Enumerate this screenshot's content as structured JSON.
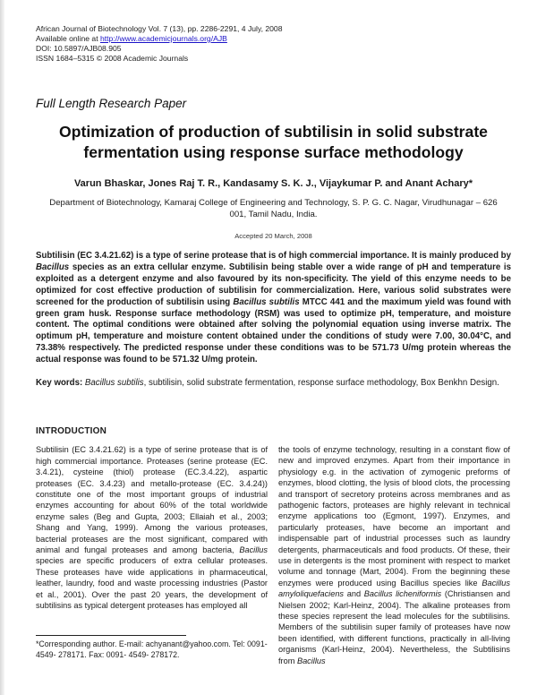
{
  "header": {
    "journal_line": "African Journal of Biotechnology Vol. 7 (13), pp. 2286-2291, 4 July, 2008",
    "available_prefix": "Available online at ",
    "journal_url": "http://www.academicjournals.org/AJB",
    "doi_line": "DOI: 10.5897/AJB08.905",
    "issn_line": "ISSN 1684–5315 © 2008 Academic Journals"
  },
  "article": {
    "section_label": "Full Length Research Paper",
    "title": "Optimization of production of subtilisin in solid substrate fermentation using response surface methodology",
    "authors": "Varun Bhaskar, Jones Raj T. R., Kandasamy S. K. J., Vijaykumar P. and Anant Achary*",
    "affiliation": "Department of Biotechnology, Kamaraj College of Engineering and Technology, S. P. G. C. Nagar, Virudhunagar – 626 001, Tamil Nadu, India.",
    "accepted": "Accepted 20 March, 2008",
    "abstract_html": "Subtilisin (EC 3.4.21.62) is a type of serine protease that is of high commercial importance. It is mainly produced by <i>Bacillus</i> species as an extra cellular enzyme. Subtilisin being stable over a wide range of pH and temperature is exploited as a detergent enzyme and also favoured by its non-specificity. The yield of this enzyme needs to be optimized for cost effective production of subtilisin for commercialization. Here, various solid substrates were screened for the production of subtilisin using <i>Bacillus subtilis</i> MTCC 441 and the maximum yield was found with green gram husk. Response surface methodology (RSM) was used to optimize pH, temperature, and moisture content. The optimal conditions were obtained after solving the polynomial equation using inverse matrix. The optimum pH, temperature and moisture content obtained under the conditions of study were 7.00, 30.04°C, and 73.38% respectively. The predicted response under these conditions was to be 571.73 U/mg protein whereas the actual response was found to be 571.32 U/mg protein.",
    "keywords_label": "Key words:",
    "keywords_html": " <i>Bacillus subtilis</i>, subtilisin, solid substrate fermentation, response surface methodology, Box Benkhn Design.",
    "intro_heading": "INTRODUCTION",
    "intro_col_left_html": "Subtilisin (EC 3.4.21.62) is a type of serine protease that is of high commercial importance. Proteases (serine protease (EC. 3.4.21), cysteine (thiol) protease (EC.3.4.22), aspartic proteases (EC. 3.4.23) and metallo-protease (EC. 3.4.24)) constitute one of the most important groups of industrial enzymes accounting for about 60% of the total worldwide enzyme sales (Beg and Gupta, 2003; Ellaiah et al., 2003; Shang and Yang, 1999). Among the various proteases, bacterial proteases are the most significant, compared with animal and fungal proteases and among bacteria, <i>Bacillus</i> species are specific producers of extra cellular proteases. These proteases have wide applications in pharmaceutical, leather, laundry, food and waste processing industries (Pastor et al., 2001). Over the past 20 years, the development of subtilisins as typical detergent proteases has employed all",
    "intro_col_right_html": "the tools of enzyme technology, resulting in a constant flow of new and improved enzymes. Apart from their importance in physiology e.g. in the activation of zymogenic preforms of enzymes, blood clotting, the lysis of blood clots, the processing and transport of secretory proteins across membranes and as pathogenic factors, proteases are highly relevant in technical enzyme applications too (Egmont, 1997). Enzymes, and particularly proteases, have become an important and indispensable part of industrial processes such as laundry detergents, pharmaceuticals and food products. Of these, their use in detergents is the most prominent with respect to market volume and tonnage (Mart, 2004). From the beginning these enzymes were produced using Bacillus species like <i>Bacillus amyloliquefaciens</i> and <i>Bacillus licheniformis</i> (Christiansen and Nielsen 2002; Karl-Heinz, 2004). The alkaline proteases from these species represent the lead molecules for the subtilisins. Members of the subtilisin super family of proteases have now been identified, with different functions, practically in all-living organisms (Karl-Heinz, 2004). Nevertheless, the Subtilisins from <i>Bacillus</i>",
    "footnote": "*Corresponding author. E-mail: achyanant@yahoo.com. Tel: 0091- 4549- 278171. Fax: 0091- 4549- 278172."
  },
  "colors": {
    "link_blue": "#1a12c8",
    "text": "#1b1b1b",
    "page_background": "#ffffff"
  }
}
